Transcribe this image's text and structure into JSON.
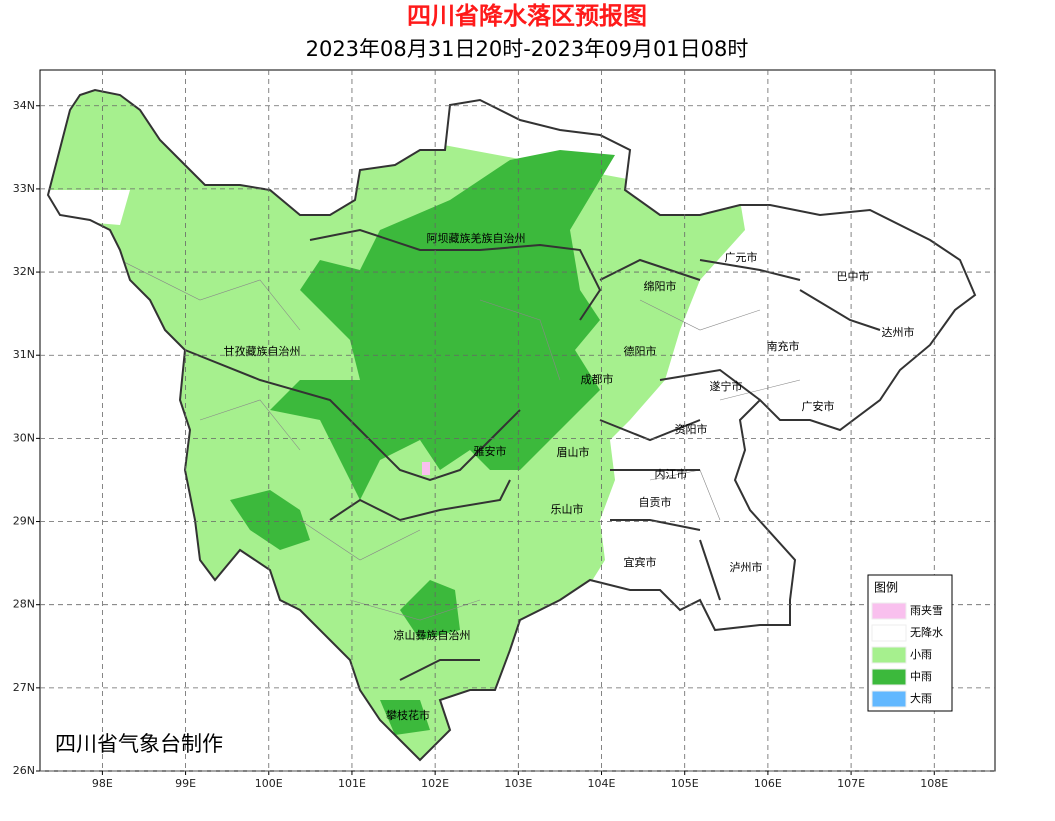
{
  "header": {
    "title": "四川省降水落区预报图",
    "subtitle": "2023年08月31日20时-2023年09月01日08时"
  },
  "map": {
    "xlim": [
      97.25,
      108.73
    ],
    "ylim": [
      26,
      34.43
    ],
    "xticks": [
      {
        "value": 98,
        "label": "98E"
      },
      {
        "value": 99,
        "label": "99E"
      },
      {
        "value": 100,
        "label": "100E"
      },
      {
        "value": 101,
        "label": "101E"
      },
      {
        "value": 102,
        "label": "102E"
      },
      {
        "value": 103,
        "label": "103E"
      },
      {
        "value": 104,
        "label": "104E"
      },
      {
        "value": 105,
        "label": "105E"
      },
      {
        "value": 106,
        "label": "106E"
      },
      {
        "value": 107,
        "label": "107E"
      },
      {
        "value": 108,
        "label": "108E"
      }
    ],
    "yticks": [
      {
        "value": 26,
        "label": "26N"
      },
      {
        "value": 27,
        "label": "27N"
      },
      {
        "value": 28,
        "label": "28N"
      },
      {
        "value": 29,
        "label": "29N"
      },
      {
        "value": 30,
        "label": "30N"
      },
      {
        "value": 31,
        "label": "31N"
      },
      {
        "value": 32,
        "label": "32N"
      },
      {
        "value": 33,
        "label": "33N"
      },
      {
        "value": 34,
        "label": "34N"
      }
    ],
    "places": [
      "阿坝藏族羌族自治州",
      "广元市",
      "巴中市",
      "绵阳市",
      "达州市",
      "甘孜藏族自治州",
      "德阳市",
      "南充市",
      "成都市",
      "遂宁市",
      "广安市",
      "资阳市",
      "雅安市",
      "眉山市",
      "内江市",
      "自贡市",
      "乐山市",
      "宜宾市",
      "泸州市",
      "凉山彝族自治州",
      "攀枝花市"
    ]
  },
  "legend": {
    "title": "图例",
    "items": [
      {
        "label": "雨夹雪",
        "color": "#f9c0ee"
      },
      {
        "label": "无降水",
        "color": "#ffffff"
      },
      {
        "label": "小雨",
        "color": "#a6f08e"
      },
      {
        "label": "中雨",
        "color": "#3cb93c"
      },
      {
        "label": "大雨",
        "color": "#62b8ff"
      }
    ]
  },
  "credit": "四川省气象台制作"
}
